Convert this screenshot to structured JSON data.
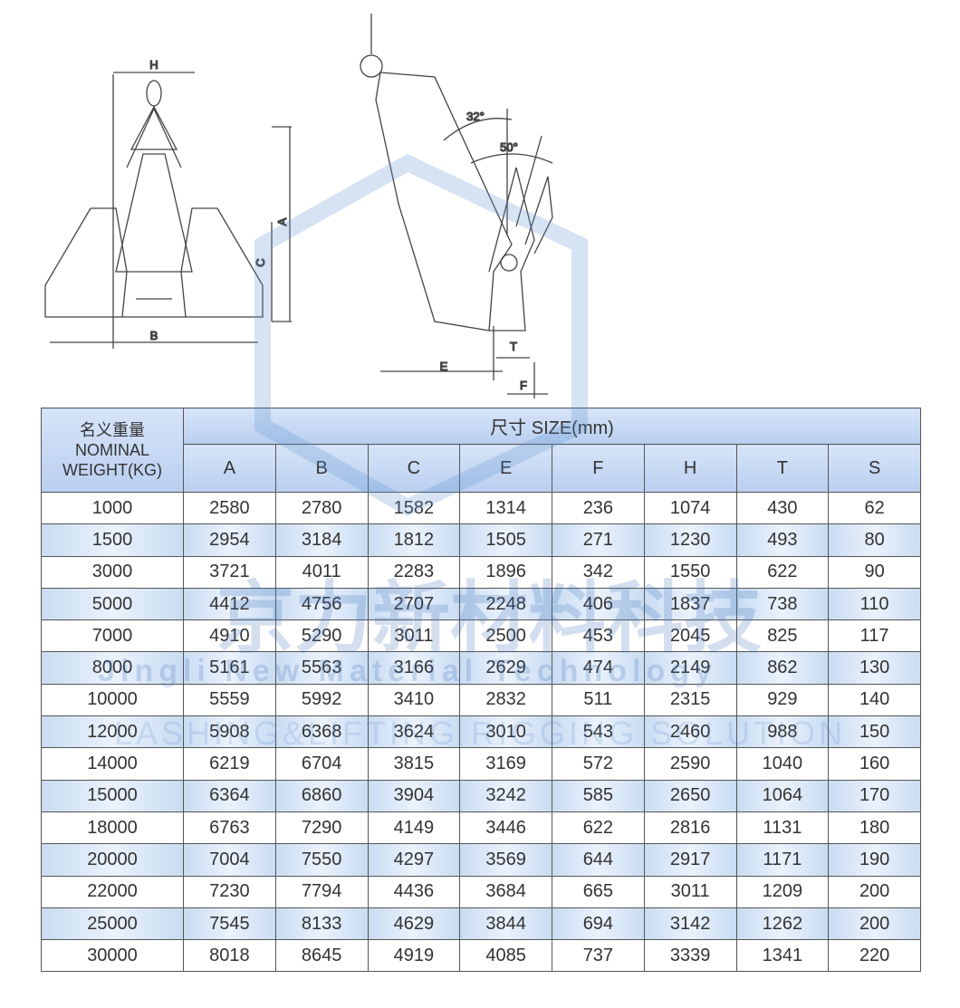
{
  "diagram": {
    "front_labels": [
      "H",
      "A",
      "C",
      "B"
    ],
    "side_labels": [
      "32°",
      "50°",
      "E",
      "T",
      "F"
    ]
  },
  "watermark": {
    "chinese": "京力新材料科技",
    "english": "Jingli New Material Technology",
    "slogan": "LASHING&LIFTING RIGGING SOLUTION"
  },
  "table": {
    "weight_header": [
      "名义重量",
      "NOMINAL",
      "WEIGHT(KG)"
    ],
    "size_header": "尺寸 SIZE(mm)",
    "columns": [
      "A",
      "B",
      "C",
      "E",
      "F",
      "H",
      "T",
      "S"
    ],
    "rows": [
      [
        1000,
        2580,
        2780,
        1582,
        1314,
        236,
        1074,
        430,
        62
      ],
      [
        1500,
        2954,
        3184,
        1812,
        1505,
        271,
        1230,
        493,
        80
      ],
      [
        3000,
        3721,
        4011,
        2283,
        1896,
        342,
        1550,
        622,
        90
      ],
      [
        5000,
        4412,
        4756,
        2707,
        2248,
        406,
        1837,
        738,
        110
      ],
      [
        7000,
        4910,
        5290,
        3011,
        2500,
        453,
        2045,
        825,
        117
      ],
      [
        8000,
        5161,
        5563,
        3166,
        2629,
        474,
        2149,
        862,
        130
      ],
      [
        10000,
        5559,
        5992,
        3410,
        2832,
        511,
        2315,
        929,
        140
      ],
      [
        12000,
        5908,
        6368,
        3624,
        3010,
        543,
        2460,
        988,
        150
      ],
      [
        14000,
        6219,
        6704,
        3815,
        3169,
        572,
        2590,
        1040,
        160
      ],
      [
        15000,
        6364,
        6860,
        3904,
        3242,
        585,
        2650,
        1064,
        170
      ],
      [
        18000,
        6763,
        7290,
        4149,
        3446,
        622,
        2816,
        1131,
        180
      ],
      [
        20000,
        7004,
        7550,
        4297,
        3569,
        644,
        2917,
        1171,
        190
      ],
      [
        22000,
        7230,
        7794,
        4436,
        3684,
        665,
        3011,
        1209,
        200
      ],
      [
        25000,
        7545,
        8133,
        4629,
        3844,
        694,
        3142,
        1262,
        200
      ],
      [
        30000,
        8018,
        8645,
        4919,
        4085,
        737,
        3339,
        1341,
        220
      ]
    ]
  }
}
